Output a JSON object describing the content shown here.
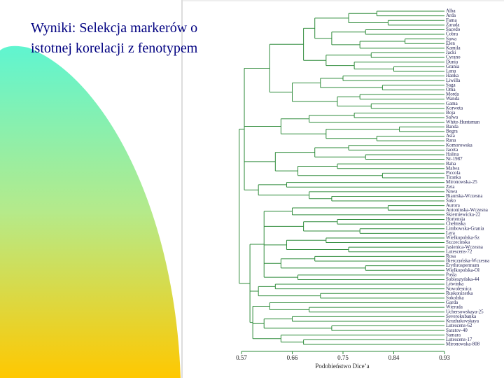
{
  "chart_data": {
    "type": "dendrogram",
    "title": [
      "Wyniki: Selekcja markerów o",
      "istotnej korelacji z fenotypem"
    ],
    "xlabel": "Podobieństwo Dice’a",
    "xlim": [
      0.57,
      0.93
    ],
    "xticks": [
      0.57,
      0.66,
      0.75,
      0.84,
      0.93
    ],
    "color": "#2e8b3a",
    "tree": {
      "height": 0.566,
      "children": [
        {
          "height": 0.575,
          "children": [
            {
              "height": 0.62,
              "children": [
                {
                  "height": 0.68,
                  "children": [
                    {
                      "height": 0.7,
                      "children": [
                        {
                          "height": 0.76,
                          "children": [
                            {
                              "height": 0.81,
                              "children": [
                                "Alba",
                                "Arda"
                              ]
                            },
                            {
                              "height": 0.83,
                              "children": [
                                "Fama",
                                "Zarada"
                              ]
                            }
                          ]
                        },
                        {
                          "height": 0.73,
                          "children": [
                            {
                              "height": 0.79,
                              "children": [
                                "Sacedo",
                                "Cobra"
                              ]
                            },
                            {
                              "height": 0.78,
                              "children": [
                                {
                                  "height": 0.86,
                                  "children": [
                                    "Sawa",
                                    "Elen"
                                  ]
                                },
                                "Kamila"
                              ]
                            }
                          ]
                        }
                      ]
                    },
                    {
                      "height": 0.72,
                      "children": [
                        {
                          "height": 0.8,
                          "children": [
                            "Jacki",
                            "Cyrano"
                          ]
                        },
                        {
                          "height": 0.77,
                          "children": [
                            "Dunia",
                            {
                              "height": 0.84,
                              "children": [
                                "Grania",
                                "Luna"
                              ]
                            }
                          ]
                        }
                      ]
                    }
                  ]
                },
                {
                  "height": 0.66,
                  "children": [
                    {
                      "height": 0.71,
                      "children": [
                        {
                          "height": 0.75,
                          "children": [
                            "Hanka",
                            "Liwilla"
                          ]
                        },
                        {
                          "height": 0.82,
                          "children": [
                            "Saga",
                            "Oma"
                          ]
                        }
                      ]
                    },
                    {
                      "height": 0.74,
                      "children": [
                        {
                          "height": 0.78,
                          "children": [
                            "Morda",
                            "Wanda"
                          ]
                        },
                        {
                          "height": 0.8,
                          "children": [
                            "Gama",
                            "Korweta"
                          ]
                        }
                      ]
                    }
                  ]
                }
              ]
            },
            {
              "height": 0.64,
              "children": [
                {
                  "height": 0.69,
                  "children": [
                    {
                      "height": 0.77,
                      "children": [
                        "Boja",
                        "Salwa"
                      ]
                    },
                    "White-Huntsman"
                  ]
                },
                {
                  "height": 0.72,
                  "children": [
                    {
                      "height": 0.85,
                      "children": [
                        "Banda",
                        "Begra"
                      ]
                    },
                    {
                      "height": 0.81,
                      "children": [
                        "Asta",
                        "Rana"
                      ]
                    }
                  ]
                }
              ]
            },
            {
              "height": 0.63,
              "children": [
                {
                  "height": 0.7,
                  "children": [
                    {
                      "height": 0.76,
                      "children": [
                        "Komorowska",
                        "Jaceta"
                      ]
                    },
                    {
                      "height": 0.79,
                      "children": [
                        "Halina",
                        "Nr-1987"
                      ]
                    }
                  ]
                },
                {
                  "height": 0.67,
                  "children": [
                    {
                      "height": 0.74,
                      "children": [
                        "Baha",
                        "Malwa"
                      ]
                    },
                    {
                      "height": 0.82,
                      "children": [
                        "Piccola",
                        "Tiranka"
                      ]
                    }
                  ]
                }
              ]
            },
            {
              "height": 0.6,
              "children": [
                {
                  "height": 0.65,
                  "children": [
                    "Mironowska-25",
                    "Zeta"
                  ]
                },
                {
                  "height": 0.69,
                  "children": [
                    "Nawa",
                    {
                      "height": 0.73,
                      "children": [
                        "Biaurska-Wczesna",
                        "Sako"
                      ]
                    }
                  ]
                }
              ]
            }
          ]
        },
        {
          "height": 0.585,
          "children": [
            {
              "height": 0.61,
              "children": [
                {
                  "height": 0.66,
                  "children": [
                    {
                      "height": 0.83,
                      "children": [
                        "Aurora",
                        "Antoninska-Wczesna"
                      ]
                    },
                    "Skierniewicka-22"
                  ]
                },
                {
                  "height": 0.68,
                  "children": [
                    {
                      "height": 0.74,
                      "children": [
                        "Hortensja",
                        "Chełmska"
                      ]
                    },
                    {
                      "height": 0.78,
                      "children": [
                        "Limbowska-Grania",
                        "Lera"
                      ]
                    }
                  ]
                },
                {
                  "height": 0.65,
                  "children": [
                    {
                      "height": 0.72,
                      "children": [
                        "Wielkopolska-Sz",
                        "Szczecinska"
                      ]
                    },
                    {
                      "height": 0.76,
                      "children": [
                        "Jasienica-Wczesna",
                        "Lutescens-72"
                      ]
                    }
                  ]
                },
                {
                  "height": 0.64,
                  "children": [
                    {
                      "height": 0.7,
                      "children": [
                        "Rosa",
                        "Bierczyńska-Wczesna"
                      ]
                    },
                    {
                      "height": 0.79,
                      "children": [
                        "Erythrospermum",
                        "Wielkopolska-Oł"
                      ]
                    }
                  ]
                },
                {
                  "height": 0.67,
                  "children": [
                    "Pośla",
                    "Sobieszyńska-44"
                  ]
                }
              ]
            },
            {
              "height": 0.6,
              "children": [
                {
                  "height": 0.63,
                  "children": [
                    "Litwinka",
                    "Nowolesnica"
                  ]
                },
                {
                  "height": 0.71,
                  "children": [
                    "Ruskonizerka",
                    "Sokolska"
                  ]
                }
              ]
            },
            {
              "height": 0.59,
              "children": [
                {
                  "height": 0.62,
                  "children": [
                    "Garda",
                    {
                      "height": 0.69,
                      "children": [
                        "Wieruda",
                        "Uchersowskaya-25"
                      ]
                    }
                  ]
                },
                {
                  "height": 0.61,
                  "children": [
                    {
                      "height": 0.66,
                      "children": [
                        "Severokubanka",
                        "Kruzhakovskaya"
                      ]
                    },
                    {
                      "height": 0.73,
                      "children": [
                        "Lutescens-62",
                        "Saratov-40"
                      ]
                    }
                  ]
                },
                {
                  "height": 0.64,
                  "children": [
                    "Samara",
                    {
                      "height": 0.68,
                      "children": [
                        "Lutescens-17",
                        "Mironowska-808"
                      ]
                    }
                  ]
                }
              ]
            }
          ]
        }
      ]
    }
  }
}
